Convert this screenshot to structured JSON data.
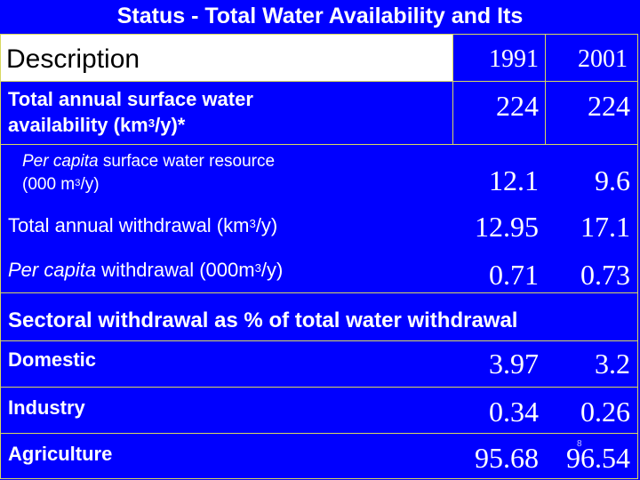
{
  "title": "Status - Total Water Availability and Its",
  "table": {
    "description_header": "Description",
    "years": [
      "1991",
      "2001"
    ],
    "rows": [
      {
        "label_line1": "Total annual surface water",
        "label_line2_pre": "availability (km",
        "sup": "3",
        "label_line2_post": "/y)*",
        "v1991": "224",
        "v2001": "224"
      },
      {
        "label_italic": "Per capita",
        "label_line1": " surface  water resource",
        "label_line2_pre": "(000 m",
        "sup": "3",
        "label_line2_post": "/y)",
        "v1991": "12.1",
        "v2001": "9.6"
      },
      {
        "label_pre": "Total annual withdrawal (km",
        "sup": "3",
        "label_post": "/y)",
        "v1991": "12.95",
        "v2001": "17.1"
      },
      {
        "label_italic": "Per capita",
        "label_pre": " withdrawal (000m",
        "sup": "3",
        "label_post": "/y)",
        "v1991": "0.71",
        "v2001": "0.73"
      }
    ],
    "sectoral_header": "Sectoral withdrawal as % of total water withdrawal",
    "sectoral_rows": [
      {
        "label": "Domestic",
        "v1991": "3.97",
        "v2001": "3.2"
      },
      {
        "label": "Industry",
        "v1991": "0.34",
        "v2001": "0.26"
      },
      {
        "label": "Agriculture",
        "v1991": "95.68",
        "v2001": "96.54"
      }
    ]
  },
  "slide_mark": "8"
}
